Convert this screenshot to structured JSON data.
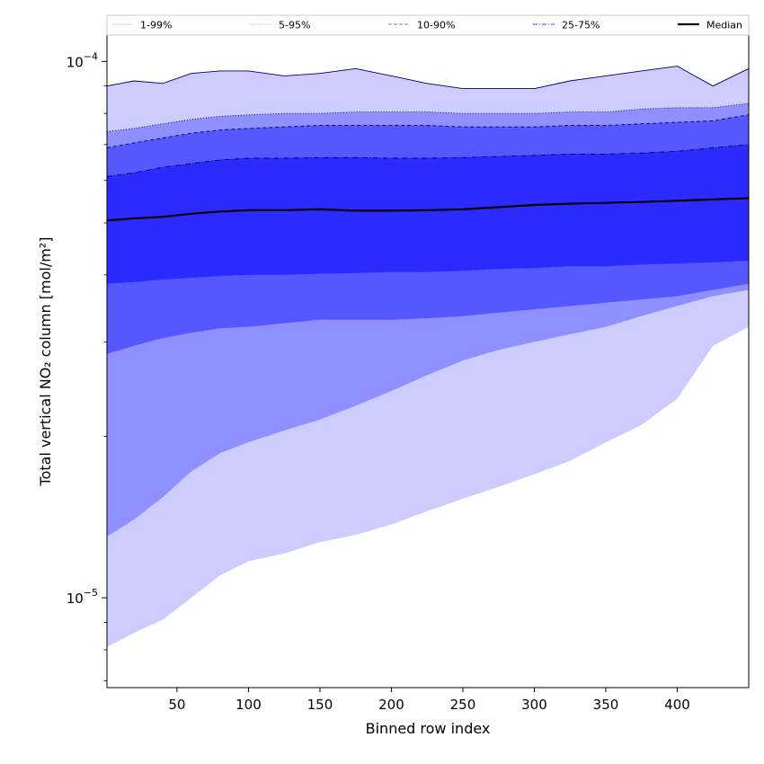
{
  "chart_data": {
    "type": "area",
    "title": "",
    "xlabel": "Binned row index",
    "ylabel": "Total vertical NO₂ column [mol/m²]",
    "x_range": [
      1,
      450
    ],
    "y_range": [
      6.8e-06,
      0.000112
    ],
    "y_scale": "log",
    "x_ticks": [
      50,
      100,
      150,
      200,
      250,
      300,
      350,
      400
    ],
    "x_tick_labels": [
      "50",
      "100",
      "150",
      "200",
      "250",
      "300",
      "350",
      "400"
    ],
    "y_major_ticks": [
      1e-05,
      0.0001
    ],
    "y_tick_labels": [
      {
        "base": "10",
        "exp": "−5"
      },
      {
        "base": "10",
        "exp": "−4"
      }
    ],
    "y_minor_ticks": [
      7e-06,
      8e-06,
      9e-06,
      2e-05,
      3e-05,
      4e-05,
      5e-05,
      6e-05,
      7e-05,
      8e-05,
      9e-05
    ],
    "legend": {
      "position": "top",
      "entries": [
        {
          "label": "1-99%",
          "color": "#d9d9f5",
          "style": "solid"
        },
        {
          "label": "5-95%",
          "color": "#b8b8f2",
          "style": "dotted"
        },
        {
          "label": "10-90%",
          "color": "#8c8cf5",
          "style": "dashed"
        },
        {
          "label": "25-75%",
          "color": "#6060ee",
          "style": "dashdot"
        },
        {
          "label": "Median",
          "color": "#000000",
          "style": "solid"
        }
      ]
    },
    "x": [
      1,
      20,
      40,
      60,
      80,
      100,
      125,
      150,
      175,
      200,
      225,
      250,
      275,
      300,
      325,
      350,
      375,
      400,
      425,
      450
    ],
    "bands": [
      {
        "name": "1-99%",
        "color": "#ccccff",
        "lower": [
          8.1e-06,
          8.6e-06,
          9.1e-06,
          1e-05,
          1.1e-05,
          1.17e-05,
          1.21e-05,
          1.27e-05,
          1.31e-05,
          1.37e-05,
          1.45e-05,
          1.53e-05,
          1.61e-05,
          1.7e-05,
          1.8e-05,
          1.95e-05,
          2.1e-05,
          2.35e-05,
          2.95e-05,
          3.2e-05
        ],
        "upper": [
          9e-05,
          9.2e-05,
          9.1e-05,
          9.5e-05,
          9.6e-05,
          9.6e-05,
          9.4e-05,
          9.5e-05,
          9.7e-05,
          9.4e-05,
          9.1e-05,
          8.9e-05,
          8.9e-05,
          8.9e-05,
          9.2e-05,
          9.4e-05,
          9.6e-05,
          9.8e-05,
          9e-05,
          9.7e-05
        ]
      },
      {
        "name": "5-95%",
        "color": "#8f8fff",
        "lower": [
          1.3e-05,
          1.4e-05,
          1.54e-05,
          1.72e-05,
          1.86e-05,
          1.95e-05,
          2.05e-05,
          2.15e-05,
          2.28e-05,
          2.43e-05,
          2.6e-05,
          2.77e-05,
          2.9e-05,
          3e-05,
          3.1e-05,
          3.2e-05,
          3.35e-05,
          3.5e-05,
          3.65e-05,
          3.75e-05
        ],
        "upper": [
          7.4e-05,
          7.5e-05,
          7.65e-05,
          7.8e-05,
          7.9e-05,
          7.95e-05,
          8e-05,
          8e-05,
          8.05e-05,
          8.05e-05,
          8.05e-05,
          8e-05,
          8e-05,
          8e-05,
          8.05e-05,
          8.05e-05,
          8.15e-05,
          8.2e-05,
          8.2e-05,
          8.35e-05
        ]
      },
      {
        "name": "10-90%",
        "color": "#5757ff",
        "lower": [
          2.85e-05,
          2.95e-05,
          3.05e-05,
          3.12e-05,
          3.18e-05,
          3.2e-05,
          3.25e-05,
          3.3e-05,
          3.3e-05,
          3.3e-05,
          3.32e-05,
          3.35e-05,
          3.4e-05,
          3.45e-05,
          3.5e-05,
          3.55e-05,
          3.6e-05,
          3.65e-05,
          3.75e-05,
          3.85e-05
        ],
        "upper": [
          6.9e-05,
          7.05e-05,
          7.2e-05,
          7.35e-05,
          7.45e-05,
          7.5e-05,
          7.55e-05,
          7.6e-05,
          7.6e-05,
          7.6e-05,
          7.6e-05,
          7.55e-05,
          7.55e-05,
          7.55e-05,
          7.6e-05,
          7.6e-05,
          7.65e-05,
          7.7e-05,
          7.75e-05,
          7.95e-05
        ]
      },
      {
        "name": "25-75%",
        "color": "#2b2bff",
        "lower": [
          3.85e-05,
          3.88e-05,
          3.92e-05,
          3.95e-05,
          3.98e-05,
          4e-05,
          4e-05,
          4.02e-05,
          4.03e-05,
          4.05e-05,
          4.05e-05,
          4.07e-05,
          4.1e-05,
          4.12e-05,
          4.15e-05,
          4.15e-05,
          4.18e-05,
          4.2e-05,
          4.22e-05,
          4.25e-05
        ],
        "upper": [
          6.1e-05,
          6.2e-05,
          6.35e-05,
          6.45e-05,
          6.55e-05,
          6.6e-05,
          6.6e-05,
          6.62e-05,
          6.62e-05,
          6.6e-05,
          6.6e-05,
          6.62e-05,
          6.65e-05,
          6.68e-05,
          6.72e-05,
          6.72e-05,
          6.75e-05,
          6.8e-05,
          6.9e-05,
          7e-05
        ]
      }
    ],
    "median": {
      "name": "Median",
      "color": "#000000",
      "values": [
        5.05e-05,
        5.1e-05,
        5.13e-05,
        5.2e-05,
        5.25e-05,
        5.28e-05,
        5.28e-05,
        5.3e-05,
        5.27e-05,
        5.27e-05,
        5.28e-05,
        5.3e-05,
        5.35e-05,
        5.4e-05,
        5.43e-05,
        5.45e-05,
        5.47e-05,
        5.5e-05,
        5.53e-05,
        5.56e-05
      ]
    }
  }
}
